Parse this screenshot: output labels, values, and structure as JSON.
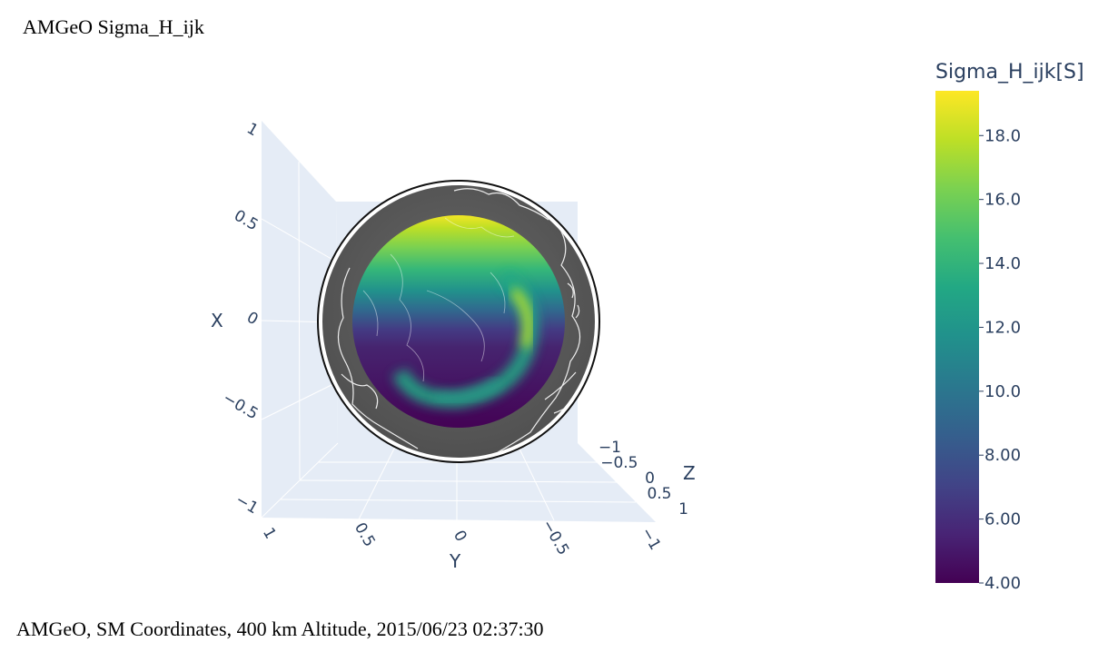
{
  "title": "AMGeO Sigma_H_ijk",
  "footer": "AMGeO,  SM Coordinates,  400 km Altitude,  2015/06/23 02:37:30",
  "chart_data": {
    "type": "heatmap",
    "projection": "3d-surface",
    "colorscale": "viridis",
    "colors": {
      "viridis": [
        "#440154",
        "#482475",
        "#414487",
        "#355f8d",
        "#2a788e",
        "#21918c",
        "#22a884",
        "#44bf70",
        "#7ad151",
        "#bddf26",
        "#fde725"
      ],
      "axis_text": "#2a3f5f",
      "grid": "#ffffff",
      "pane": "#e5ecf6",
      "globe": "#5c5c5c",
      "coastline": "#ffffff"
    },
    "colorbar": {
      "title": "Sigma_H_ijk[S]",
      "range": [
        4.0,
        19.4
      ],
      "ticks": [
        "18.0",
        "16.0",
        "14.0",
        "12.0",
        "10.0",
        "8.00",
        "6.00",
        "4.00"
      ],
      "tick_values": [
        18,
        16,
        14,
        12,
        10,
        8,
        6,
        4
      ]
    },
    "axes": {
      "x": {
        "label": "X",
        "range": [
          -1,
          1
        ],
        "ticks": [
          "1",
          "0.5",
          "0",
          "−0.5",
          "−1"
        ]
      },
      "y": {
        "label": "Y",
        "range": [
          -1,
          1
        ],
        "ticks": [
          "1",
          "0.5",
          "0",
          "−0.5",
          "−1"
        ]
      },
      "z": {
        "label": "Z",
        "range": [
          -1,
          1
        ],
        "ticks": [
          "−1",
          "−0.5",
          "0",
          "0.5",
          "1"
        ]
      }
    },
    "data_range": [
      4.0,
      19.4
    ],
    "features": {
      "cap_dayside_max": 19.4,
      "cap_background_min": 4.0,
      "auroral_oval_peak": 17.5,
      "auroral_oval_nightside": 11.0
    }
  }
}
